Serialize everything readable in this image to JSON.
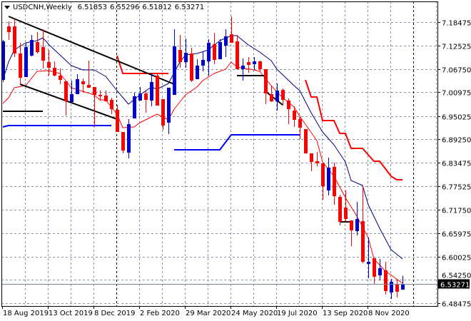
{
  "header": {
    "symbol_timeframe": "USDCNH,Weekly",
    "open": "6.51853",
    "high": "6.55296",
    "low": "6.51812",
    "close": "6.53271",
    "menu_icon": "triangle-down-icon"
  },
  "colors": {
    "bull": "#0000cc",
    "bear": "#ff0000",
    "fast_ma": "#ff0000",
    "slow_ma": "#000080",
    "upper_stop": "#ff0000",
    "lower_stop": "#0000ff",
    "trendline": "#000000",
    "grid": "#8494a6",
    "price_line": "#778899"
  },
  "chart_data": {
    "type": "candlestick",
    "symbol": "USDCNH",
    "timeframe": "Weekly",
    "ylim": [
      6.48475,
      7.18475
    ],
    "grid": true,
    "y_ticks": [
      "7.18475",
      "7.12525",
      "7.06750",
      "7.00975",
      "6.95025",
      "6.89250",
      "6.83475",
      "6.77525",
      "6.71750",
      "6.65975",
      "6.60025",
      "6.54250",
      "6.48475"
    ],
    "x_ticks": [
      {
        "date": "2019-08-18",
        "label": "18 Aug 2019"
      },
      {
        "date": "2019-10-13",
        "label": "13 Oct 2019"
      },
      {
        "date": "2019-12-08",
        "label": "8 Dec 2019"
      },
      {
        "date": "2020-02-02",
        "label": "2 Feb 2020"
      },
      {
        "date": "2020-03-29",
        "label": "29 Mar 2020"
      },
      {
        "date": "2020-05-24",
        "label": "24 May 2020"
      },
      {
        "date": "2020-07-19",
        "label": "19 Jul 2020"
      },
      {
        "date": "2020-09-13",
        "label": "13 Sep 2020"
      },
      {
        "date": "2020-11-08",
        "label": "8 Nov 2020"
      }
    ],
    "period_separators": [
      "2020-01-05",
      "2021-01-03"
    ],
    "current_price": "6.53271",
    "candles_columns": [
      "date",
      "open",
      "high",
      "low",
      "close"
    ],
    "candles": [
      [
        "2019-08-18",
        7.0408,
        7.1403,
        7.0355,
        7.1368
      ],
      [
        "2019-08-25",
        7.1741,
        7.1865,
        7.1403,
        7.1599
      ],
      [
        "2019-09-01",
        7.1741,
        7.1918,
        7.0977,
        7.1066
      ],
      [
        "2019-09-08",
        7.1066,
        7.1332,
        7.0302,
        7.0462
      ],
      [
        "2019-09-15",
        7.0479,
        7.1332,
        7.0479,
        7.1225
      ],
      [
        "2019-09-22",
        7.1012,
        7.1527,
        7.0995,
        7.1403
      ],
      [
        "2019-09-29",
        7.135,
        7.1599,
        7.1066,
        7.1101
      ],
      [
        "2019-10-06",
        7.1225,
        7.167,
        7.0692,
        7.0888
      ],
      [
        "2019-10-13",
        7.0852,
        7.1154,
        7.0515,
        7.071
      ],
      [
        "2019-10-20",
        7.071,
        7.087,
        7.0497,
        7.0515
      ],
      [
        "2019-10-27",
        7.0515,
        7.0692,
        7.0302,
        7.0408
      ],
      [
        "2019-11-03",
        7.0373,
        7.0373,
        6.952,
        6.9875
      ],
      [
        "2019-11-10",
        6.9857,
        7.039,
        6.9857,
        7.0053
      ],
      [
        "2019-11-17",
        7.0053,
        7.055,
        7.0053,
        7.0426
      ],
      [
        "2019-11-24",
        7.0373,
        7.0444,
        7.0088,
        7.0302
      ],
      [
        "2019-12-01",
        7.0284,
        7.0888,
        7.0213,
        7.0213
      ],
      [
        "2019-12-08",
        7.0231,
        7.0231,
        6.9236,
        7.0035
      ],
      [
        "2019-12-15",
        7.0035,
        7.0142,
        6.9893,
        7.0
      ],
      [
        "2019-12-22",
        7.0017,
        7.0142,
        6.9875,
        6.9875
      ],
      [
        "2019-12-29",
        6.9911,
        6.9964,
        6.9555,
        6.968
      ],
      [
        "2020-01-05",
        6.9662,
        6.9786,
        6.9111,
        6.9111
      ],
      [
        "2020-01-12",
        6.9111,
        6.9111,
        6.8578,
        6.8649
      ],
      [
        "2020-01-19",
        6.8596,
        6.9431,
        6.8454,
        6.9307
      ],
      [
        "2020-01-26",
        6.9449,
        7.0088,
        6.9449,
        7.0
      ],
      [
        "2020-02-02",
        6.9893,
        7.0231,
        6.9893,
        7.0071
      ],
      [
        "2020-02-09",
        7.0071,
        7.0142,
        6.9591,
        6.9911
      ],
      [
        "2020-02-16",
        6.9893,
        7.0568,
        6.9751,
        7.0355
      ],
      [
        "2020-02-23",
        7.0515,
        7.055,
        6.9768,
        6.9768
      ],
      [
        "2020-03-01",
        6.9929,
        6.9929,
        6.9165,
        6.9271
      ],
      [
        "2020-03-08",
        6.9342,
        7.0213,
        6.9058,
        7.0213
      ],
      [
        "2020-03-15",
        7.0035,
        7.167,
        7.0035,
        7.1243
      ],
      [
        "2020-03-22",
        7.1154,
        7.1527,
        7.071,
        7.0852
      ],
      [
        "2020-03-29",
        7.0852,
        7.1439,
        7.071,
        7.1083
      ],
      [
        "2020-04-05",
        7.1066,
        7.1208,
        7.0355,
        7.039
      ],
      [
        "2020-04-12",
        7.0426,
        7.0923,
        7.0426,
        7.0764
      ],
      [
        "2020-04-19",
        7.0764,
        7.1119,
        7.0621,
        7.0906
      ],
      [
        "2020-04-26",
        7.087,
        7.1421,
        7.0515,
        7.1332
      ],
      [
        "2020-05-03",
        7.1297,
        7.1581,
        7.0799,
        7.0906
      ],
      [
        "2020-05-10",
        7.0923,
        7.1421,
        7.0923,
        7.135
      ],
      [
        "2020-05-17",
        7.1261,
        7.167,
        7.0977,
        7.1492
      ],
      [
        "2020-05-24",
        7.1545,
        7.1989,
        7.1332,
        7.1332
      ],
      [
        "2020-05-31",
        7.1368,
        7.1527,
        7.0675,
        7.0675
      ],
      [
        "2020-06-07",
        7.0675,
        7.0941,
        7.039,
        7.0764
      ],
      [
        "2020-06-14",
        7.0852,
        7.0977,
        7.0586,
        7.0781
      ],
      [
        "2020-06-21",
        7.0799,
        7.0977,
        7.0657,
        7.087
      ],
      [
        "2020-06-28",
        7.087,
        7.0888,
        7.0621,
        7.0675
      ],
      [
        "2020-07-05",
        7.0675,
        7.0675,
        6.9804,
        7.0071
      ],
      [
        "2020-07-12",
        7.0053,
        7.0266,
        6.9857,
        6.9875
      ],
      [
        "2020-07-19",
        6.9875,
        7.0319,
        6.9644,
        7.0142
      ],
      [
        "2020-07-26",
        7.016,
        7.0195,
        6.9768,
        6.9911
      ],
      [
        "2020-08-02",
        6.9893,
        6.9946,
        6.9307,
        6.968
      ],
      [
        "2020-08-09",
        6.9644,
        6.9751,
        6.9236,
        6.9413
      ],
      [
        "2020-08-16",
        6.9431,
        6.9502,
        6.8934,
        6.9218
      ],
      [
        "2020-08-23",
        6.9182,
        6.9182,
        6.8578,
        6.8578
      ],
      [
        "2020-08-30",
        6.8578,
        6.8578,
        6.8134,
        6.8365
      ],
      [
        "2020-09-06",
        6.8383,
        6.8614,
        6.8258,
        6.833
      ],
      [
        "2020-09-13",
        6.833,
        6.833,
        6.7424,
        6.7761
      ],
      [
        "2020-09-20",
        6.7655,
        6.8472,
        6.753,
        6.8223
      ],
      [
        "2020-09-27",
        6.8241,
        6.8347,
        6.7299,
        6.7512
      ],
      [
        "2020-10-04",
        6.7495,
        6.7548,
        6.6784,
        6.6873
      ],
      [
        "2020-10-11",
        6.7228,
        6.7655,
        6.6873,
        6.6944
      ],
      [
        "2020-10-18",
        6.6908,
        6.6908,
        6.6269,
        6.666
      ],
      [
        "2020-10-25",
        6.6642,
        6.7371,
        6.6535,
        6.6944
      ],
      [
        "2020-11-01",
        6.6891,
        6.7779,
        6.5843,
        6.5878
      ],
      [
        "2020-11-08",
        6.5825,
        6.6482,
        6.5469,
        6.5878
      ],
      [
        "2020-11-15",
        6.5967,
        6.5967,
        6.531,
        6.5505
      ],
      [
        "2020-11-22",
        6.554,
        6.5949,
        6.5416,
        6.5718
      ],
      [
        "2020-11-29",
        6.5665,
        6.5878,
        6.5061,
        6.5149
      ],
      [
        "2020-12-06",
        6.5114,
        6.5452,
        6.4954,
        6.5381
      ],
      [
        "2020-12-13",
        6.5327,
        6.5434,
        6.499,
        6.5132
      ],
      [
        "2020-12-20",
        6.51853,
        6.55296,
        6.51812,
        6.53271
      ]
    ],
    "lines": [
      {
        "role": "fast_ma",
        "color_key": "fast_ma",
        "width": 1,
        "points": [
          [
            "2019-08-18",
            6.9822
          ],
          [
            "2019-08-25",
            6.9964
          ],
          [
            "2019-09-01",
            7.0213
          ],
          [
            "2019-09-15",
            7.0266
          ],
          [
            "2019-09-29",
            7.0621
          ],
          [
            "2019-10-13",
            7.0639
          ],
          [
            "2019-10-27",
            7.0568
          ],
          [
            "2019-11-10",
            7.0213
          ],
          [
            "2019-11-24",
            7.0124
          ],
          [
            "2019-12-08",
            7.0035
          ],
          [
            "2019-12-15",
            6.9911
          ],
          [
            "2019-12-22",
            6.9911
          ],
          [
            "2020-01-05",
            6.9555
          ],
          [
            "2020-01-12",
            6.9218
          ],
          [
            "2020-01-26",
            6.9236
          ],
          [
            "2020-02-02",
            6.9342
          ],
          [
            "2020-02-23",
            6.9555
          ],
          [
            "2020-03-08",
            6.9413
          ],
          [
            "2020-03-15",
            6.968
          ],
          [
            "2020-03-29",
            7.0035
          ],
          [
            "2020-04-12",
            7.0231
          ],
          [
            "2020-04-19",
            7.039
          ],
          [
            "2020-05-03",
            7.0568
          ],
          [
            "2020-05-17",
            7.0675
          ],
          [
            "2020-05-24",
            7.0852
          ],
          [
            "2020-05-31",
            7.0728
          ],
          [
            "2020-06-21",
            7.0657
          ],
          [
            "2020-06-28",
            7.0621
          ],
          [
            "2020-07-12",
            7.0266
          ],
          [
            "2020-07-26",
            6.9964
          ],
          [
            "2020-08-09",
            6.9733
          ],
          [
            "2020-08-16",
            6.9502
          ],
          [
            "2020-09-06",
            6.8898
          ],
          [
            "2020-09-13",
            6.8365
          ],
          [
            "2020-09-27",
            6.801
          ],
          [
            "2020-10-11",
            6.7477
          ],
          [
            "2020-10-25",
            6.7015
          ],
          [
            "2020-11-08",
            6.6482
          ],
          [
            "2020-11-15",
            6.5949
          ],
          [
            "2020-11-29",
            6.5647
          ],
          [
            "2020-12-20",
            6.5345
          ]
        ]
      },
      {
        "role": "slow_ma",
        "color_key": "slow_ma",
        "width": 1,
        "points": [
          [
            "2019-08-18",
            7.0408
          ],
          [
            "2019-08-25",
            7.0852
          ],
          [
            "2019-09-01",
            7.1154
          ],
          [
            "2019-09-15",
            7.1332
          ],
          [
            "2019-09-29",
            7.1385
          ],
          [
            "2019-10-06",
            7.1456
          ],
          [
            "2019-10-13",
            7.1297
          ],
          [
            "2019-10-27",
            7.103
          ],
          [
            "2019-11-10",
            7.0764
          ],
          [
            "2019-11-24",
            7.0657
          ],
          [
            "2019-12-08",
            7.0657
          ],
          [
            "2019-12-22",
            7.0497
          ],
          [
            "2020-01-05",
            7.0142
          ],
          [
            "2020-01-19",
            6.9804
          ],
          [
            "2020-02-02",
            7.0035
          ],
          [
            "2020-02-16",
            7.0231
          ],
          [
            "2020-02-23",
            7.0177
          ],
          [
            "2020-03-08",
            7.0319
          ],
          [
            "2020-03-22",
            7.0852
          ],
          [
            "2020-03-29",
            7.103
          ],
          [
            "2020-04-12",
            7.1066
          ],
          [
            "2020-04-26",
            7.1154
          ],
          [
            "2020-05-10",
            7.1385
          ],
          [
            "2020-05-24",
            7.151
          ],
          [
            "2020-05-31",
            7.151
          ],
          [
            "2020-06-14",
            7.1279
          ],
          [
            "2020-06-28",
            7.1101
          ],
          [
            "2020-07-12",
            7.0888
          ],
          [
            "2020-07-19",
            7.0675
          ],
          [
            "2020-08-09",
            7.0266
          ],
          [
            "2020-08-16",
            7.0142
          ],
          [
            "2020-08-30",
            6.9591
          ],
          [
            "2020-09-13",
            6.9111
          ],
          [
            "2020-09-27",
            6.8792
          ],
          [
            "2020-10-11",
            6.8365
          ],
          [
            "2020-10-18",
            6.7903
          ],
          [
            "2020-11-01",
            6.7779
          ],
          [
            "2020-11-08",
            6.7299
          ],
          [
            "2020-11-22",
            6.6713
          ],
          [
            "2020-12-06",
            6.618
          ],
          [
            "2020-12-20",
            6.5949
          ]
        ]
      },
      {
        "role": "upper_stop_1",
        "color_key": "upper_stop",
        "width": 2,
        "points": [
          [
            "2020-01-05",
            7.1012
          ],
          [
            "2020-01-12",
            7.0568
          ],
          [
            "2020-03-08",
            7.0568
          ]
        ]
      },
      {
        "role": "upper_stop_2",
        "color_key": "upper_stop",
        "width": 2,
        "points": [
          [
            "2020-08-23",
            7.0408
          ],
          [
            "2020-08-30",
            6.9982
          ],
          [
            "2020-09-06",
            6.9982
          ],
          [
            "2020-09-13",
            6.9396
          ],
          [
            "2020-09-27",
            6.9396
          ],
          [
            "2020-10-04",
            6.9076
          ],
          [
            "2020-10-11",
            6.9076
          ],
          [
            "2020-10-18",
            6.8703
          ],
          [
            "2020-11-01",
            6.8703
          ],
          [
            "2020-11-15",
            6.8383
          ],
          [
            "2020-11-22",
            6.8383
          ],
          [
            "2020-12-06",
            6.801
          ],
          [
            "2020-12-13",
            6.7921
          ],
          [
            "2020-12-20",
            6.7921
          ]
        ]
      },
      {
        "role": "lower_stop_1",
        "color_key": "lower_stop",
        "width": 2,
        "points": [
          [
            "2019-08-18",
            6.9236
          ],
          [
            "2019-08-25",
            6.9271
          ],
          [
            "2019-12-29",
            6.9271
          ]
        ]
      },
      {
        "role": "lower_stop_2",
        "color_key": "lower_stop",
        "width": 2,
        "points": [
          [
            "2020-03-15",
            6.8667
          ],
          [
            "2020-05-10",
            6.8667
          ],
          [
            "2020-05-24",
            6.904
          ],
          [
            "2020-08-16",
            6.904
          ]
        ]
      },
      {
        "role": "trendline_upper",
        "color_key": "trendline",
        "width": 2,
        "points": [
          [
            "2019-08-25",
            7.1989
          ],
          [
            "2020-03-15",
            7.0302
          ]
        ]
      },
      {
        "role": "trendline_lower",
        "color_key": "trendline",
        "width": 2,
        "points": [
          [
            "2019-09-08",
            7.0302
          ],
          [
            "2020-01-05",
            6.9431
          ]
        ]
      },
      {
        "role": "level_1",
        "color_key": "trendline",
        "width": 2,
        "points": [
          [
            "2019-08-18",
            6.9626
          ],
          [
            "2019-10-06",
            6.9626
          ]
        ]
      },
      {
        "role": "level_2",
        "color_key": "trendline",
        "width": 2,
        "points": [
          [
            "2020-05-31",
            7.0515
          ],
          [
            "2020-07-05",
            7.0515
          ]
        ]
      },
      {
        "role": "trendline_short",
        "color_key": "trendline",
        "width": 2,
        "points": [
          [
            "2020-07-05",
            7.0124
          ],
          [
            "2020-07-26",
            6.9786
          ]
        ]
      },
      {
        "role": "level_3",
        "color_key": "trendline",
        "width": 2,
        "points": [
          [
            "2020-10-04",
            6.6873
          ],
          [
            "2020-10-18",
            6.6873
          ]
        ]
      }
    ]
  }
}
